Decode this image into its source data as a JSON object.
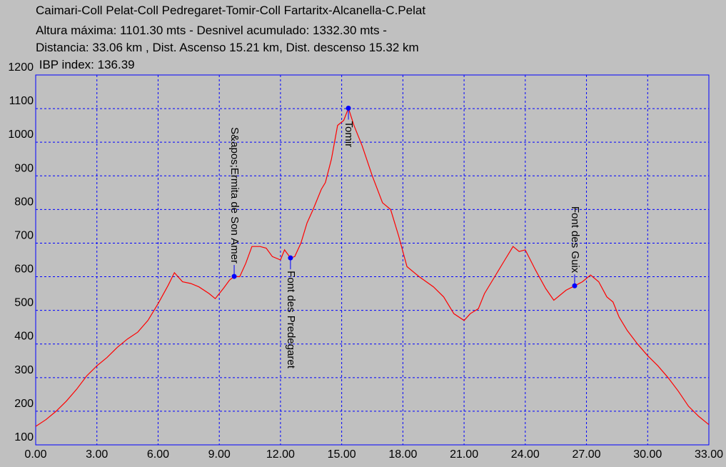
{
  "chart_data": {
    "type": "line",
    "title": "Caimari-Coll Pelat-Coll Pedregaret-Tomir-Coll Fartaritx-Alcanella-C.Pelat",
    "subtitle": [
      "Altura máxima: 1101.30 mts -  Desnivel acumulado: 1332.30 mts -",
      "Distancia: 33.06 km , Dist. Ascenso 15.21 km,  Dist. descenso 15.32 km",
      " IBP index: 136.39"
    ],
    "x": [
      0,
      0.5,
      1.0,
      1.5,
      2.0,
      2.5,
      3.0,
      3.5,
      4.0,
      4.5,
      5.0,
      5.5,
      6.0,
      6.5,
      6.8,
      7.2,
      7.6,
      8.0,
      8.5,
      8.8,
      9.2,
      9.5,
      9.73,
      10.0,
      10.3,
      10.6,
      11.0,
      11.3,
      11.6,
      12.0,
      12.2,
      12.49,
      12.7,
      13.0,
      13.3,
      13.6,
      14.0,
      14.2,
      14.5,
      14.8,
      15.1,
      15.33,
      15.6,
      16.0,
      16.5,
      17.0,
      17.4,
      17.8,
      18.2,
      18.8,
      19.5,
      20.0,
      20.5,
      21.0,
      21.3,
      21.7,
      22.0,
      22.5,
      23.0,
      23.4,
      23.7,
      24.0,
      24.5,
      25.0,
      25.4,
      26.0,
      26.42,
      26.8,
      27.2,
      27.6,
      28.0,
      28.3,
      28.6,
      29.0,
      29.5,
      30.0,
      30.5,
      31.0,
      31.5,
      32.0,
      32.5,
      33.0
    ],
    "values": [
      155,
      175,
      200,
      230,
      265,
      305,
      335,
      360,
      390,
      415,
      435,
      470,
      520,
      575,
      612,
      585,
      580,
      570,
      550,
      535,
      565,
      590,
      601,
      600,
      640,
      690,
      690,
      685,
      660,
      650,
      680,
      656,
      660,
      700,
      760,
      800,
      860,
      880,
      950,
      1050,
      1065,
      1101.3,
      1050,
      990,
      900,
      820,
      800,
      720,
      630,
      600,
      570,
      540,
      490,
      470,
      490,
      505,
      550,
      600,
      650,
      690,
      675,
      680,
      620,
      565,
      530,
      560,
      573,
      585,
      605,
      585,
      540,
      525,
      480,
      440,
      400,
      365,
      335,
      300,
      260,
      215,
      185,
      160
    ],
    "color": "#ff0000",
    "xlim": [
      0,
      33
    ],
    "xticks": [
      {
        "value": 0,
        "label": "0.00"
      },
      {
        "value": 3,
        "label": "3.00"
      },
      {
        "value": 6,
        "label": "6.00"
      },
      {
        "value": 9,
        "label": "9.00"
      },
      {
        "value": 12,
        "label": "12.00"
      },
      {
        "value": 15,
        "label": "15.00"
      },
      {
        "value": 18,
        "label": "18.00"
      },
      {
        "value": 21,
        "label": "21.00"
      },
      {
        "value": 24,
        "label": "24.00"
      },
      {
        "value": 27,
        "label": "27.00"
      },
      {
        "value": 30,
        "label": "30.00"
      },
      {
        "value": 33,
        "label": "33.00"
      }
    ],
    "ylim": [
      100,
      1200
    ],
    "yticks": [
      100,
      200,
      300,
      400,
      500,
      600,
      700,
      800,
      900,
      1000,
      1100,
      1200
    ],
    "grid": true,
    "grid_color": "#0000ff",
    "annotations": [
      {
        "x": 9.73,
        "y": 601,
        "label": "S&apos;Ermita de Son Amer",
        "position": "above"
      },
      {
        "x": 12.49,
        "y": 656,
        "label": "Font des Predegaret",
        "position": "below"
      },
      {
        "x": 15.33,
        "y": 1101.3,
        "label": "Tomir",
        "position": "below"
      },
      {
        "x": 26.42,
        "y": 573,
        "label": "Font des Guix",
        "position": "above"
      }
    ],
    "marker_color": "#0000ff"
  }
}
